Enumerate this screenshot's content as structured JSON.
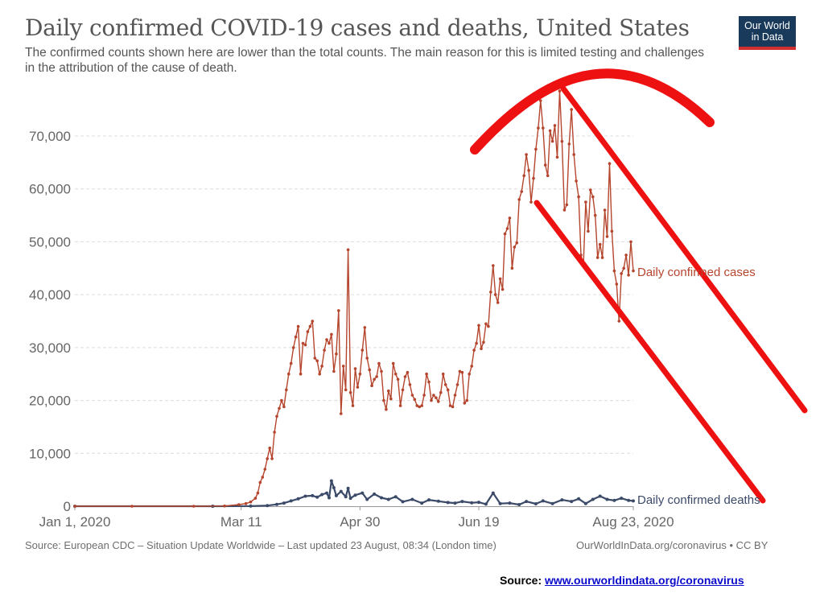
{
  "chart_data": {
    "type": "line",
    "title": "Daily confirmed COVID-19 cases and deaths, United States",
    "subtitle": "The confirmed counts shown here are lower than the total counts. The main reason for this is limited testing and challenges in the attribution of the cause of death.",
    "x_axis": {
      "min": "2020-01-01",
      "max": "2020-08-23",
      "ticks": [
        "Jan 1, 2020",
        "Mar 11",
        "Apr 30",
        "Jun 19",
        "Aug 23, 2020"
      ]
    },
    "y_axis": {
      "min": 0,
      "max": 70000,
      "ticks": [
        "0",
        "10,000",
        "20,000",
        "30,000",
        "40,000",
        "50,000",
        "60,000",
        "70,000"
      ]
    },
    "grid": "horizontal dashed",
    "legend": "inline labels at line ends",
    "series": [
      {
        "name": "Daily confirmed cases",
        "color": "#b5452d",
        "points": [
          [
            "2020-01-01",
            0
          ],
          [
            "2020-01-25",
            0
          ],
          [
            "2020-02-20",
            0
          ],
          [
            "2020-03-04",
            50
          ],
          [
            "2020-03-10",
            300
          ],
          [
            "2020-03-13",
            500
          ],
          [
            "2020-03-15",
            800
          ],
          [
            "2020-03-17",
            1500
          ],
          [
            "2020-03-18",
            2500
          ],
          [
            "2020-03-19",
            4500
          ],
          [
            "2020-03-20",
            5500
          ],
          [
            "2020-03-21",
            7000
          ],
          [
            "2020-03-22",
            9000
          ],
          [
            "2020-03-23",
            11000
          ],
          [
            "2020-03-24",
            9000
          ],
          [
            "2020-03-25",
            14000
          ],
          [
            "2020-03-26",
            17000
          ],
          [
            "2020-03-27",
            18500
          ],
          [
            "2020-03-28",
            20000
          ],
          [
            "2020-03-29",
            18800
          ],
          [
            "2020-03-30",
            22000
          ],
          [
            "2020-03-31",
            25000
          ],
          [
            "2020-04-01",
            27000
          ],
          [
            "2020-04-02",
            30000
          ],
          [
            "2020-04-03",
            32000
          ],
          [
            "2020-04-04",
            34000
          ],
          [
            "2020-04-05",
            25000
          ],
          [
            "2020-04-06",
            30800
          ],
          [
            "2020-04-07",
            30500
          ],
          [
            "2020-04-08",
            33000
          ],
          [
            "2020-04-09",
            34000
          ],
          [
            "2020-04-10",
            35000
          ],
          [
            "2020-04-11",
            28000
          ],
          [
            "2020-04-12",
            27500
          ],
          [
            "2020-04-13",
            25000
          ],
          [
            "2020-04-14",
            26500
          ],
          [
            "2020-04-15",
            29500
          ],
          [
            "2020-04-16",
            31500
          ],
          [
            "2020-04-17",
            30800
          ],
          [
            "2020-04-18",
            32500
          ],
          [
            "2020-04-19",
            25500
          ],
          [
            "2020-04-20",
            28800
          ],
          [
            "2020-04-21",
            37000
          ],
          [
            "2020-04-22",
            17500
          ],
          [
            "2020-04-23",
            26500
          ],
          [
            "2020-04-24",
            22000
          ],
          [
            "2020-04-25",
            48500
          ],
          [
            "2020-04-26",
            21500
          ],
          [
            "2020-04-27",
            19000
          ],
          [
            "2020-04-28",
            26000
          ],
          [
            "2020-04-29",
            22500
          ],
          [
            "2020-04-30",
            25000
          ],
          [
            "2020-05-01",
            29500
          ],
          [
            "2020-05-02",
            33800
          ],
          [
            "2020-05-03",
            28000
          ],
          [
            "2020-05-04",
            25800
          ],
          [
            "2020-05-05",
            22800
          ],
          [
            "2020-05-06",
            24000
          ],
          [
            "2020-05-07",
            24500
          ],
          [
            "2020-05-08",
            27000
          ],
          [
            "2020-05-09",
            25500
          ],
          [
            "2020-05-10",
            20000
          ],
          [
            "2020-05-11",
            18300
          ],
          [
            "2020-05-12",
            21800
          ],
          [
            "2020-05-13",
            20300
          ],
          [
            "2020-05-14",
            27000
          ],
          [
            "2020-05-15",
            25000
          ],
          [
            "2020-05-16",
            24000
          ],
          [
            "2020-05-17",
            19000
          ],
          [
            "2020-05-18",
            22000
          ],
          [
            "2020-05-19",
            24500
          ],
          [
            "2020-05-20",
            25300
          ],
          [
            "2020-05-21",
            23000
          ],
          [
            "2020-05-22",
            21000
          ],
          [
            "2020-05-23",
            20200
          ],
          [
            "2020-05-24",
            19000
          ],
          [
            "2020-05-25",
            18800
          ],
          [
            "2020-05-26",
            19000
          ],
          [
            "2020-05-27",
            21000
          ],
          [
            "2020-05-28",
            25000
          ],
          [
            "2020-05-29",
            23500
          ],
          [
            "2020-05-30",
            20000
          ],
          [
            "2020-05-31",
            21000
          ],
          [
            "2020-06-01",
            20500
          ],
          [
            "2020-06-02",
            19800
          ],
          [
            "2020-06-03",
            21500
          ],
          [
            "2020-06-04",
            25000
          ],
          [
            "2020-06-05",
            23000
          ],
          [
            "2020-06-06",
            22000
          ],
          [
            "2020-06-07",
            19000
          ],
          [
            "2020-06-08",
            18800
          ],
          [
            "2020-06-09",
            21000
          ],
          [
            "2020-06-10",
            23000
          ],
          [
            "2020-06-11",
            25500
          ],
          [
            "2020-06-12",
            25300
          ],
          [
            "2020-06-13",
            19500
          ],
          [
            "2020-06-14",
            20000
          ],
          [
            "2020-06-15",
            25000
          ],
          [
            "2020-06-16",
            26500
          ],
          [
            "2020-06-17",
            29500
          ],
          [
            "2020-06-18",
            30800
          ],
          [
            "2020-06-19",
            34200
          ],
          [
            "2020-06-20",
            29800
          ],
          [
            "2020-06-21",
            31000
          ],
          [
            "2020-06-22",
            34500
          ],
          [
            "2020-06-23",
            34000
          ],
          [
            "2020-06-24",
            40500
          ],
          [
            "2020-06-25",
            45500
          ],
          [
            "2020-06-26",
            40000
          ],
          [
            "2020-06-27",
            38500
          ],
          [
            "2020-06-28",
            43000
          ],
          [
            "2020-06-29",
            41000
          ],
          [
            "2020-06-30",
            51500
          ],
          [
            "2020-07-01",
            52500
          ],
          [
            "2020-07-02",
            54500
          ],
          [
            "2020-07-03",
            45000
          ],
          [
            "2020-07-04",
            49000
          ],
          [
            "2020-07-05",
            49800
          ],
          [
            "2020-07-06",
            58000
          ],
          [
            "2020-07-07",
            59500
          ],
          [
            "2020-07-08",
            62500
          ],
          [
            "2020-07-09",
            66500
          ],
          [
            "2020-07-10",
            63500
          ],
          [
            "2020-07-11",
            57500
          ],
          [
            "2020-07-12",
            62000
          ],
          [
            "2020-07-13",
            67500
          ],
          [
            "2020-07-14",
            71500
          ],
          [
            "2020-07-15",
            76700
          ],
          [
            "2020-07-16",
            71500
          ],
          [
            "2020-07-17",
            64500
          ],
          [
            "2020-07-18",
            62500
          ],
          [
            "2020-07-19",
            71000
          ],
          [
            "2020-07-20",
            69000
          ],
          [
            "2020-07-21",
            72000
          ],
          [
            "2020-07-22",
            66000
          ],
          [
            "2020-07-23",
            78500
          ],
          [
            "2020-07-24",
            69000
          ],
          [
            "2020-07-25",
            56000
          ],
          [
            "2020-07-26",
            57000
          ],
          [
            "2020-07-27",
            68500
          ],
          [
            "2020-07-28",
            75000
          ],
          [
            "2020-07-29",
            66500
          ],
          [
            "2020-07-30",
            61500
          ],
          [
            "2020-07-31",
            58500
          ],
          [
            "2020-08-01",
            47500
          ],
          [
            "2020-08-02",
            45500
          ],
          [
            "2020-08-03",
            57500
          ],
          [
            "2020-08-04",
            52000
          ],
          [
            "2020-08-05",
            59800
          ],
          [
            "2020-08-06",
            58500
          ],
          [
            "2020-08-07",
            55000
          ],
          [
            "2020-08-08",
            47000
          ],
          [
            "2020-08-09",
            49500
          ],
          [
            "2020-08-10",
            47000
          ],
          [
            "2020-08-11",
            56000
          ],
          [
            "2020-08-12",
            51000
          ],
          [
            "2020-08-13",
            64800
          ],
          [
            "2020-08-14",
            52000
          ],
          [
            "2020-08-15",
            44500
          ],
          [
            "2020-08-16",
            42000
          ],
          [
            "2020-08-17",
            35000
          ],
          [
            "2020-08-18",
            44000
          ],
          [
            "2020-08-19",
            45000
          ],
          [
            "2020-08-20",
            47500
          ],
          [
            "2020-08-21",
            43700
          ],
          [
            "2020-08-22",
            50000
          ],
          [
            "2020-08-23",
            44500
          ]
        ]
      },
      {
        "name": "Daily confirmed deaths",
        "color": "#3b4a68",
        "points": [
          [
            "2020-01-01",
            0
          ],
          [
            "2020-02-28",
            0
          ],
          [
            "2020-03-15",
            30
          ],
          [
            "2020-03-22",
            120
          ],
          [
            "2020-03-26",
            350
          ],
          [
            "2020-03-29",
            600
          ],
          [
            "2020-04-01",
            1000
          ],
          [
            "2020-04-04",
            1400
          ],
          [
            "2020-04-07",
            1900
          ],
          [
            "2020-04-10",
            2000
          ],
          [
            "2020-04-12",
            1700
          ],
          [
            "2020-04-14",
            2200
          ],
          [
            "2020-04-16",
            2500
          ],
          [
            "2020-04-17",
            1600
          ],
          [
            "2020-04-18",
            4800
          ],
          [
            "2020-04-19",
            3500
          ],
          [
            "2020-04-20",
            2000
          ],
          [
            "2020-04-22",
            2800
          ],
          [
            "2020-04-24",
            1800
          ],
          [
            "2020-04-25",
            3400
          ],
          [
            "2020-04-26",
            1500
          ],
          [
            "2020-04-28",
            2100
          ],
          [
            "2020-05-01",
            2500
          ],
          [
            "2020-05-03",
            1300
          ],
          [
            "2020-05-06",
            2300
          ],
          [
            "2020-05-09",
            1600
          ],
          [
            "2020-05-12",
            1300
          ],
          [
            "2020-05-15",
            1800
          ],
          [
            "2020-05-18",
            850
          ],
          [
            "2020-05-22",
            1300
          ],
          [
            "2020-05-26",
            600
          ],
          [
            "2020-05-29",
            1200
          ],
          [
            "2020-06-02",
            950
          ],
          [
            "2020-06-06",
            700
          ],
          [
            "2020-06-09",
            600
          ],
          [
            "2020-06-12",
            900
          ],
          [
            "2020-06-16",
            650
          ],
          [
            "2020-06-19",
            750
          ],
          [
            "2020-06-22",
            400
          ],
          [
            "2020-06-25",
            2500
          ],
          [
            "2020-06-28",
            500
          ],
          [
            "2020-07-02",
            600
          ],
          [
            "2020-07-06",
            300
          ],
          [
            "2020-07-09",
            900
          ],
          [
            "2020-07-13",
            450
          ],
          [
            "2020-07-16",
            1000
          ],
          [
            "2020-07-20",
            500
          ],
          [
            "2020-07-24",
            1200
          ],
          [
            "2020-07-28",
            900
          ],
          [
            "2020-07-31",
            1400
          ],
          [
            "2020-08-03",
            500
          ],
          [
            "2020-08-06",
            1300
          ],
          [
            "2020-08-09",
            1900
          ],
          [
            "2020-08-12",
            1300
          ],
          [
            "2020-08-15",
            1100
          ],
          [
            "2020-08-18",
            1500
          ],
          [
            "2020-08-21",
            1100
          ],
          [
            "2020-08-23",
            1000
          ]
        ]
      }
    ]
  },
  "header": {
    "title": "Daily confirmed COVID-19 cases and deaths, United States",
    "subtitle": "The confirmed counts shown here are lower than the total counts. The main reason for this is limited testing and challenges in the attribution of the cause of death."
  },
  "logo": {
    "text": "Our World\nin Data"
  },
  "footer": {
    "source": "Source: European CDC – Situation Update Worldwide – Last updated 23 August, 08:34 (London time)",
    "credit": "OurWorldInData.org/coronavirus • CC BY"
  },
  "source_line": {
    "label": "Source: ",
    "link": "www.ourworldindata.org/coronavirus"
  },
  "annotation": {
    "color": "#ee1111"
  }
}
